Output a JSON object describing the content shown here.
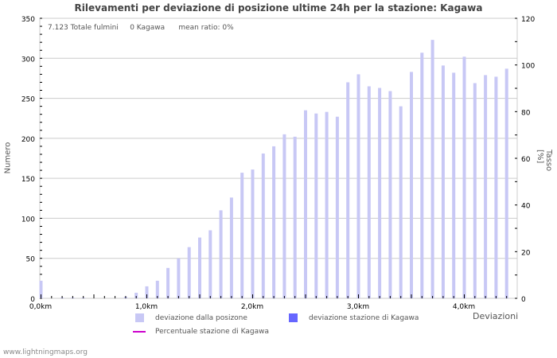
{
  "title": "Rilevamenti per deviazione di posizione ultime 24h per la stazione: Kagawa",
  "info": {
    "total": "7.123 Totale fulmini",
    "station": "0 Kagawa",
    "mean_ratio": "mean ratio: 0%"
  },
  "axes": {
    "left_label": "Numero",
    "right_label": "Tasso [%]",
    "x_label": "Deviazioni"
  },
  "legend": {
    "item1": "deviazione dalla posizone",
    "item2": "deviazione stazione di Kagawa",
    "item3": "Percentuale stazione di Kagawa"
  },
  "colors": {
    "bars": "#c8c8f5",
    "station_bars": "#6666ff",
    "percent_line": "#cc00cc",
    "grid": "#cccccc"
  },
  "footer": "www.lightningmaps.org",
  "chart_data": {
    "type": "bar",
    "title": "Rilevamenti per deviazione di posizione ultime 24h per la stazione: Kagawa",
    "xlabel": "Deviazioni",
    "ylabel": "Numero",
    "y2label": "Tasso [%]",
    "ylim": [
      0,
      350
    ],
    "y2lim": [
      0,
      120
    ],
    "yticks": [
      0,
      50,
      100,
      150,
      200,
      250,
      300,
      350
    ],
    "y2ticks": [
      0,
      20,
      40,
      60,
      80,
      100,
      120
    ],
    "xticks": [
      "0,0km",
      "1,0km",
      "2,0km",
      "3,0km",
      "4,0km"
    ],
    "x_km": [
      0.0,
      0.1,
      0.2,
      0.3,
      0.4,
      0.5,
      0.6,
      0.7,
      0.8,
      0.9,
      1.0,
      1.1,
      1.2,
      1.3,
      1.4,
      1.5,
      1.6,
      1.7,
      1.8,
      1.9,
      2.0,
      2.1,
      2.2,
      2.3,
      2.4,
      2.5,
      2.6,
      2.7,
      2.8,
      2.9,
      3.0,
      3.1,
      3.2,
      3.3,
      3.4,
      3.5,
      3.6,
      3.7,
      3.8,
      3.9,
      4.0,
      4.1,
      4.2,
      4.3,
      4.4
    ],
    "series": [
      {
        "name": "deviazione dalla posizone",
        "values": [
          22,
          0,
          1,
          1,
          1,
          0,
          0,
          0,
          2,
          7,
          15,
          22,
          38,
          50,
          64,
          76,
          85,
          110,
          126,
          157,
          161,
          181,
          190,
          205,
          202,
          235,
          231,
          233,
          227,
          270,
          280,
          265,
          263,
          259,
          240,
          283,
          307,
          323,
          291,
          282,
          302,
          269,
          279,
          277,
          287
        ]
      },
      {
        "name": "deviazione stazione di Kagawa",
        "values": []
      },
      {
        "name": "Percentuale stazione di Kagawa",
        "values": []
      }
    ],
    "grid": true,
    "legend_position": "bottom"
  }
}
